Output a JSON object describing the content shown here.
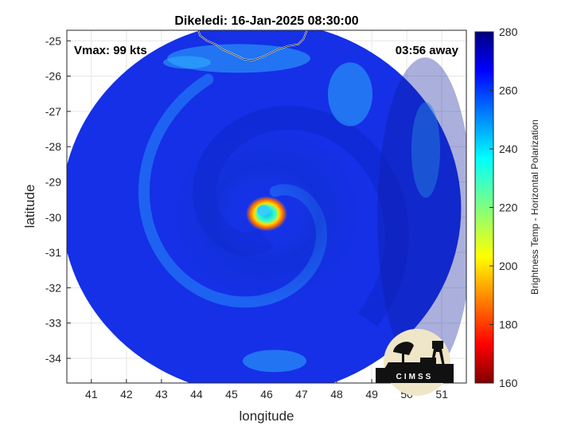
{
  "title": "Dikeledi: 16-Jan-2025 08:30:00",
  "vmax_label": "Vmax: 99 kts",
  "time_away_label": "03:56 away",
  "axes": {
    "xlabel": "longitude",
    "ylabel": "latitude",
    "xlim": [
      40.3,
      51.7
    ],
    "ylim": [
      -34.7,
      -24.7
    ],
    "xticks": [
      "41",
      "42",
      "43",
      "44",
      "45",
      "46",
      "47",
      "48",
      "49",
      "50",
      "51"
    ],
    "xtick_values": [
      41,
      42,
      43,
      44,
      45,
      46,
      47,
      48,
      49,
      50,
      51
    ],
    "yticks": [
      "-25",
      "-26",
      "-27",
      "-28",
      "-29",
      "-30",
      "-31",
      "-32",
      "-33",
      "-34"
    ],
    "ytick_values": [
      -25,
      -26,
      -27,
      -28,
      -29,
      -30,
      -31,
      -32,
      -33,
      -34
    ],
    "grid": true
  },
  "colorbar": {
    "label": "Brightness Temp - Horizontal Polarization",
    "range": [
      160,
      280
    ],
    "ticks": [
      "280",
      "260",
      "240",
      "220",
      "200",
      "180",
      "160"
    ],
    "tick_values": [
      280,
      260,
      240,
      220,
      200,
      180,
      160
    ],
    "colormap": "jet"
  },
  "image": {
    "storm_center": [
      46.0,
      -29.9
    ],
    "swath_center": [
      45.85,
      -29.75
    ],
    "swath_radius_deg_lon": 5.7,
    "swath_radius_deg_lat": 5.3,
    "background_tb": 262,
    "eye_tb": 232,
    "eyewall_tb": 192
  },
  "logo": {
    "text": "CIMSS"
  },
  "colors": {
    "frame": "#262626",
    "grid": "#e6e6e6",
    "coast": "#ffffff"
  }
}
